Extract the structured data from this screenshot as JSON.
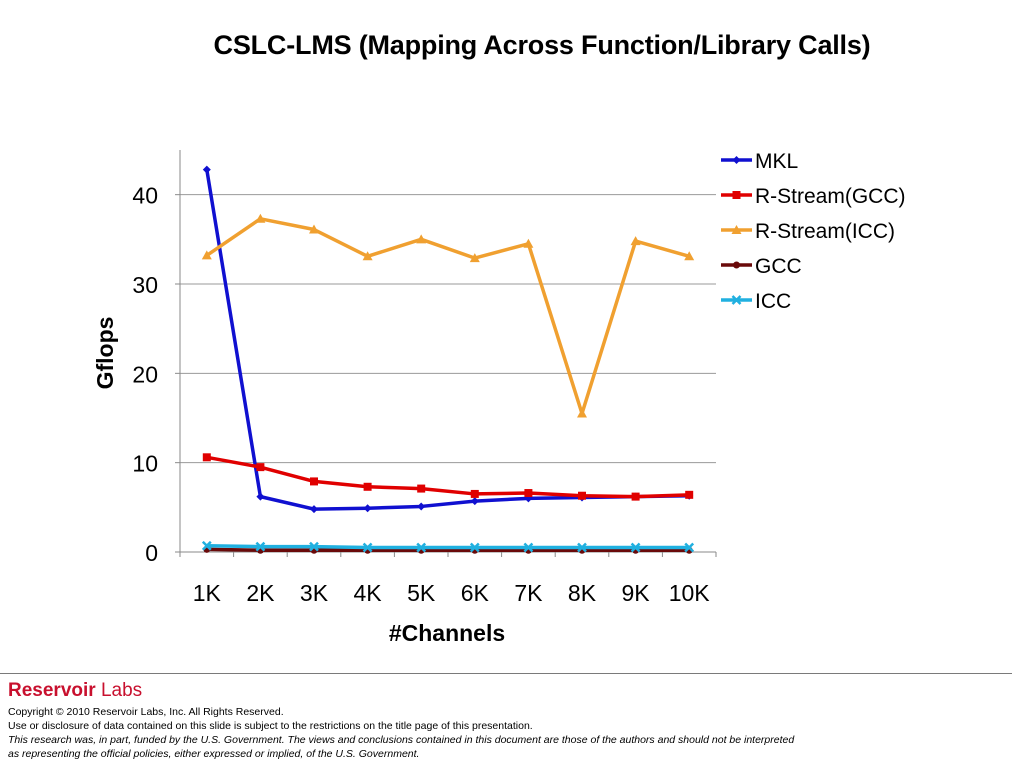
{
  "slide": {
    "title": "CSLC-LMS (Mapping Across Function/Library Calls)"
  },
  "chart_data": {
    "type": "line",
    "title": "",
    "xlabel": "#Channels",
    "ylabel": "Gflops",
    "categories": [
      "1K",
      "2K",
      "3K",
      "4K",
      "5K",
      "6K",
      "7K",
      "8K",
      "9K",
      "10K"
    ],
    "ylim": [
      0,
      45
    ],
    "yticks": [
      "0",
      "10",
      "20",
      "30",
      "40"
    ],
    "grid": true,
    "legend_position": "right",
    "series": [
      {
        "name": "MKL",
        "color": "#1010d0",
        "marker": "diamond",
        "values": [
          42.8,
          6.2,
          4.8,
          4.9,
          5.1,
          5.7,
          6.0,
          6.1,
          6.2,
          6.3
        ]
      },
      {
        "name": "R-Stream(GCC)",
        "color": "#e00000",
        "marker": "square",
        "values": [
          10.6,
          9.5,
          7.9,
          7.3,
          7.1,
          6.5,
          6.6,
          6.3,
          6.2,
          6.4
        ]
      },
      {
        "name": "R-Stream(ICC)",
        "color": "#f0a030",
        "marker": "triangle",
        "values": [
          33.2,
          37.3,
          36.1,
          33.1,
          35.0,
          32.9,
          34.5,
          15.5,
          34.8,
          33.1
        ]
      },
      {
        "name": "GCC",
        "color": "#6a0a0a",
        "marker": "circle",
        "values": [
          0.3,
          0.2,
          0.2,
          0.2,
          0.2,
          0.2,
          0.2,
          0.2,
          0.2,
          0.2
        ]
      },
      {
        "name": "ICC",
        "color": "#20b0e0",
        "marker": "x",
        "values": [
          0.7,
          0.6,
          0.6,
          0.5,
          0.5,
          0.5,
          0.5,
          0.5,
          0.5,
          0.5
        ]
      }
    ]
  },
  "footer": {
    "brand_bold": "Reservoir",
    "brand_light": " Labs",
    "copyright": "Copyright © 2010 Reservoir Labs, Inc.  All Rights Reserved.",
    "restriction": "Use or disclosure of data contained on this slide is subject to the restrictions on the title page of this presentation.",
    "disclaimer_1": "This research was, in part, funded by the U.S. Government.  The views and conclusions contained in this document are those of the authors and should not be interpreted",
    "disclaimer_2": "as representing the official policies, either expressed or implied, of the U.S. Government."
  }
}
